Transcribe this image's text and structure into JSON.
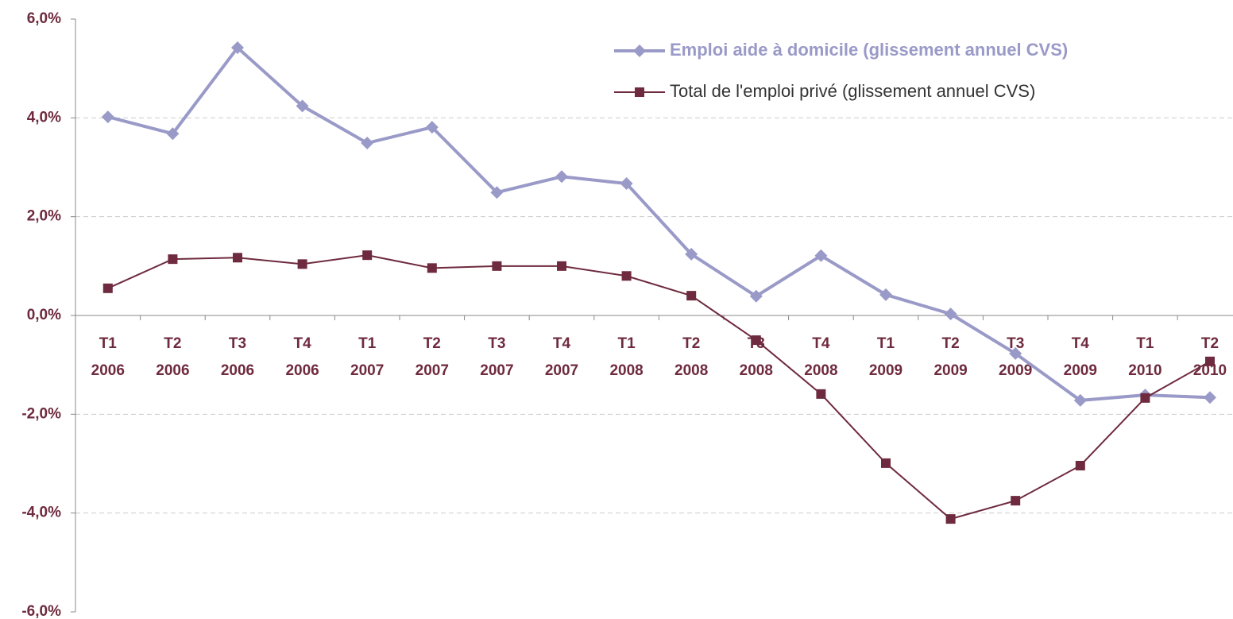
{
  "chart_data": {
    "type": "line",
    "categories": [
      "T1 2006",
      "T2 2006",
      "T3 2006",
      "T4 2006",
      "T1 2007",
      "T2 2007",
      "T3 2007",
      "T4 2007",
      "T1 2008",
      "T2 2008",
      "T3 2008",
      "T4 2008",
      "T1 2009",
      "T2 2009",
      "T3 2009",
      "T4 2009",
      "T1 2010",
      "T2 2010"
    ],
    "series": [
      {
        "name": "Emploi aide à domicile (glissement annuel CVS)",
        "color": "#9a9ac8",
        "marker": "diamond",
        "values": [
          4.02,
          3.68,
          5.42,
          4.24,
          3.49,
          3.81,
          2.49,
          2.81,
          2.67,
          1.24,
          0.39,
          1.21,
          0.42,
          0.03,
          -0.77,
          -1.72,
          -1.61,
          -1.66
        ]
      },
      {
        "name": "Total de l'emploi privé (glissement annuel CVS)",
        "color": "#6e2a3e",
        "marker": "square",
        "values": [
          0.55,
          1.14,
          1.17,
          1.04,
          1.22,
          0.96,
          1.0,
          1.0,
          0.8,
          0.4,
          -0.5,
          -1.59,
          -2.99,
          -4.12,
          -3.75,
          -3.04,
          -1.67,
          -0.93
        ]
      }
    ],
    "ylim": [
      -6,
      6
    ],
    "yticks": [
      {
        "value": -6,
        "label": "-6,0%"
      },
      {
        "value": -4,
        "label": "-4,0%"
      },
      {
        "value": -2,
        "label": "-2,0%"
      },
      {
        "value": 0,
        "label": "0,0%"
      },
      {
        "value": 2,
        "label": "2,0%"
      },
      {
        "value": 4,
        "label": "4,0%"
      },
      {
        "value": 6,
        "label": "6,0%"
      }
    ],
    "grid": true,
    "legend": "top-right"
  }
}
